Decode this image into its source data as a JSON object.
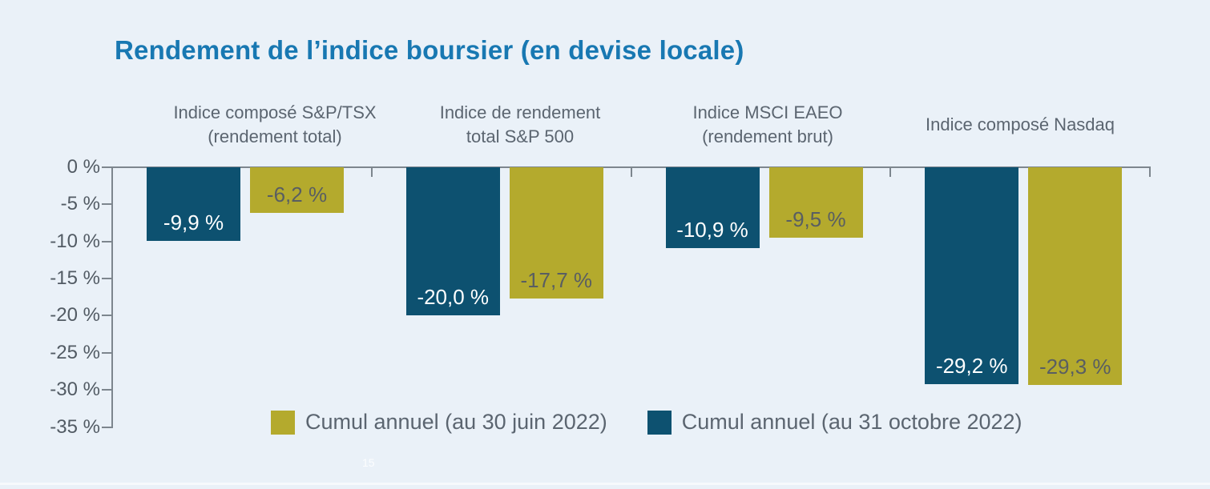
{
  "title": "Rendement de l’indice boursier (en devise locale)",
  "watermark": "15",
  "colors": {
    "background": "#eaf1f8",
    "title": "#1878b2",
    "bar_october": "#0d5170",
    "bar_june": "#b4aa2d",
    "axis": "#7d868e",
    "category_text": "#5b6570",
    "value_on_blue": "#ffffff",
    "value_on_olive": "#595e62"
  },
  "chart_data": {
    "type": "bar",
    "title": "Rendement de l’indice boursier (en devise locale)",
    "categories": [
      "Indice composé S&P/TSX (rendement total)",
      "Indice de rendement total S&P 500",
      "Indice MSCI EAEO (rendement brut)",
      "Indice composé Nasdaq"
    ],
    "category_lines": [
      [
        "Indice composé S&P/TSX",
        "(rendement total)"
      ],
      [
        "Indice de rendement",
        "total S&P 500"
      ],
      [
        "Indice MSCI EAEO",
        "(rendement brut)"
      ],
      [
        "Indice composé Nasdaq"
      ]
    ],
    "series": [
      {
        "name": "Cumul annuel (au 31 octobre 2022)",
        "color": "#0d5170",
        "values": [
          -9.9,
          -20.0,
          -10.9,
          -29.2
        ],
        "labels": [
          "-9,9 %",
          "-20,0 %",
          "-10,9 %",
          "-29,2 %"
        ]
      },
      {
        "name": "Cumul annuel (au 30 juin 2022)",
        "color": "#b4aa2d",
        "values": [
          -6.2,
          -17.7,
          -9.5,
          -29.3
        ],
        "labels": [
          "-6,2 %",
          "-17,7 %",
          "-9,5 %",
          "-29,3 %"
        ]
      }
    ],
    "yticks": [
      "0 %",
      "-5 %",
      "-10 %",
      "-15 %",
      "-20 %",
      "-25 %",
      "-30 %",
      "-35 %"
    ],
    "ylabel": "",
    "xlabel": "",
    "ylim": [
      -35,
      0
    ],
    "grid": false,
    "legend_position": "bottom",
    "legend": [
      {
        "label": "Cumul annuel (au 30 juin 2022)",
        "color": "#b4aa2d"
      },
      {
        "label": "Cumul annuel (au 31 octobre 2022)",
        "color": "#0d5170"
      }
    ]
  }
}
